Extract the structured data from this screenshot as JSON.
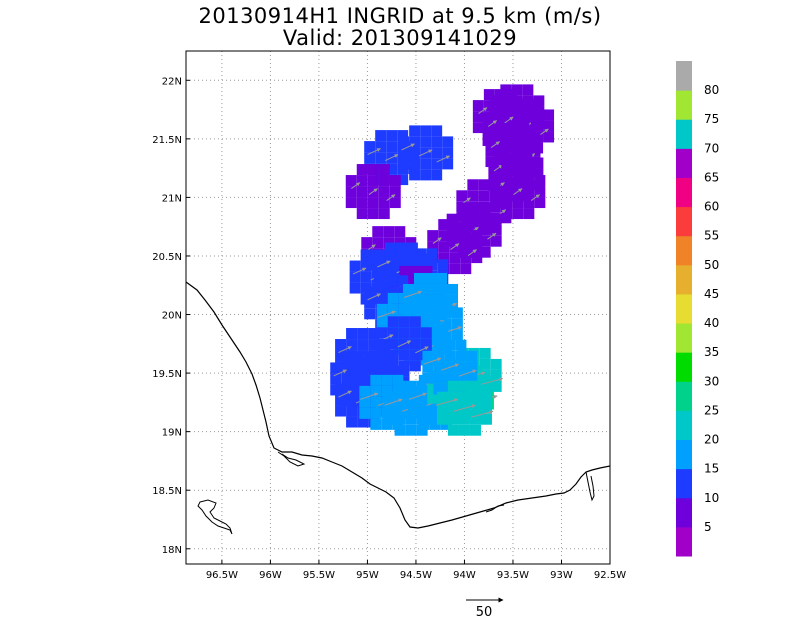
{
  "title_line1": "20130914H1 INGRID at 9.5 km (m/s)",
  "title_line2": "Valid: 201309141029",
  "chart_data": {
    "type": "heatmap",
    "xlim": [
      -96.87,
      -92.5
    ],
    "ylim": [
      17.87,
      22.25
    ],
    "x_ticks": [
      -96.5,
      -96.0,
      -95.5,
      -95.0,
      -94.5,
      -94.0,
      -93.5,
      -93.0,
      -92.5
    ],
    "x_tick_labels": [
      "96.5W",
      "96W",
      "95.5W",
      "95W",
      "94.5W",
      "94W",
      "93.5W",
      "93W",
      "92.5W"
    ],
    "y_ticks": [
      18.0,
      18.5,
      19.0,
      19.5,
      20.0,
      20.5,
      21.0,
      21.5,
      22.0
    ],
    "y_tick_labels": [
      "18N",
      "18.5N",
      "19N",
      "19.5N",
      "20N",
      "20.5N",
      "21N",
      "21.5N",
      "22N"
    ],
    "grid": true,
    "colorbar": {
      "labels": [
        "5",
        "10",
        "15",
        "20",
        "25",
        "30",
        "35",
        "40",
        "45",
        "50",
        "55",
        "60",
        "65",
        "70",
        "75",
        "80"
      ],
      "colors": [
        "#a000c8",
        "#6e00dc",
        "#1e3cff",
        "#00a0ff",
        "#00c8c8",
        "#00d28c",
        "#00dc00",
        "#a0e632",
        "#e6dc32",
        "#e6af2d",
        "#f08228",
        "#fa3c3c",
        "#f00082",
        "#a000c8",
        "#00c8c8",
        "#a0e632",
        "#aaaaaa"
      ]
    },
    "reference_vector": {
      "label": "50",
      "speed": 50
    },
    "wind_cells": [
      {
        "lon": -93.63,
        "lat": 21.69,
        "speed": 5
      },
      {
        "lon": -93.46,
        "lat": 21.73,
        "speed": 5
      },
      {
        "lon": -93.53,
        "lat": 21.58,
        "speed": 5
      },
      {
        "lon": -93.36,
        "lat": 21.61,
        "speed": 5
      },
      {
        "lon": -93.5,
        "lat": 21.4,
        "speed": 5
      },
      {
        "lon": -93.47,
        "lat": 21.2,
        "speed": 5
      },
      {
        "lon": -93.45,
        "lat": 21.05,
        "speed": 5
      },
      {
        "lon": -94.75,
        "lat": 21.34,
        "speed": 10
      },
      {
        "lon": -94.4,
        "lat": 21.38,
        "speed": 10
      },
      {
        "lon": -94.94,
        "lat": 21.05,
        "speed": 5
      },
      {
        "lon": -93.8,
        "lat": 20.92,
        "speed": 5
      },
      {
        "lon": -93.9,
        "lat": 20.72,
        "speed": 5
      },
      {
        "lon": -94.1,
        "lat": 20.58,
        "speed": 5
      },
      {
        "lon": -94.78,
        "lat": 20.52,
        "speed": 5
      },
      {
        "lon": -94.9,
        "lat": 20.32,
        "speed": 10
      },
      {
        "lon": -94.65,
        "lat": 20.38,
        "speed": 10
      },
      {
        "lon": -94.45,
        "lat": 20.33,
        "speed": 10
      },
      {
        "lon": -94.5,
        "lat": 20.18,
        "speed": 5
      },
      {
        "lon": -94.75,
        "lat": 20.1,
        "speed": 10
      },
      {
        "lon": -94.62,
        "lat": 19.95,
        "speed": 15
      },
      {
        "lon": -94.35,
        "lat": 20.12,
        "speed": 15
      },
      {
        "lon": -94.3,
        "lat": 19.92,
        "speed": 15
      },
      {
        "lon": -94.45,
        "lat": 19.8,
        "speed": 15
      },
      {
        "lon": -94.62,
        "lat": 19.75,
        "speed": 10
      },
      {
        "lon": -95.05,
        "lat": 19.65,
        "speed": 10
      },
      {
        "lon": -95.1,
        "lat": 19.45,
        "speed": 10
      },
      {
        "lon": -94.85,
        "lat": 19.42,
        "speed": 10
      },
      {
        "lon": -95.05,
        "lat": 19.27,
        "speed": 10
      },
      {
        "lon": -94.8,
        "lat": 19.25,
        "speed": 15
      },
      {
        "lon": -94.55,
        "lat": 19.2,
        "speed": 15
      },
      {
        "lon": -94.3,
        "lat": 19.25,
        "speed": 15
      },
      {
        "lon": -94.1,
        "lat": 19.38,
        "speed": 20
      },
      {
        "lon": -93.98,
        "lat": 19.33,
        "speed": 25
      },
      {
        "lon": -93.9,
        "lat": 19.48,
        "speed": 20
      },
      {
        "lon": -94.15,
        "lat": 19.55,
        "speed": 15
      },
      {
        "lon": -94.0,
        "lat": 19.2,
        "speed": 20
      }
    ]
  }
}
